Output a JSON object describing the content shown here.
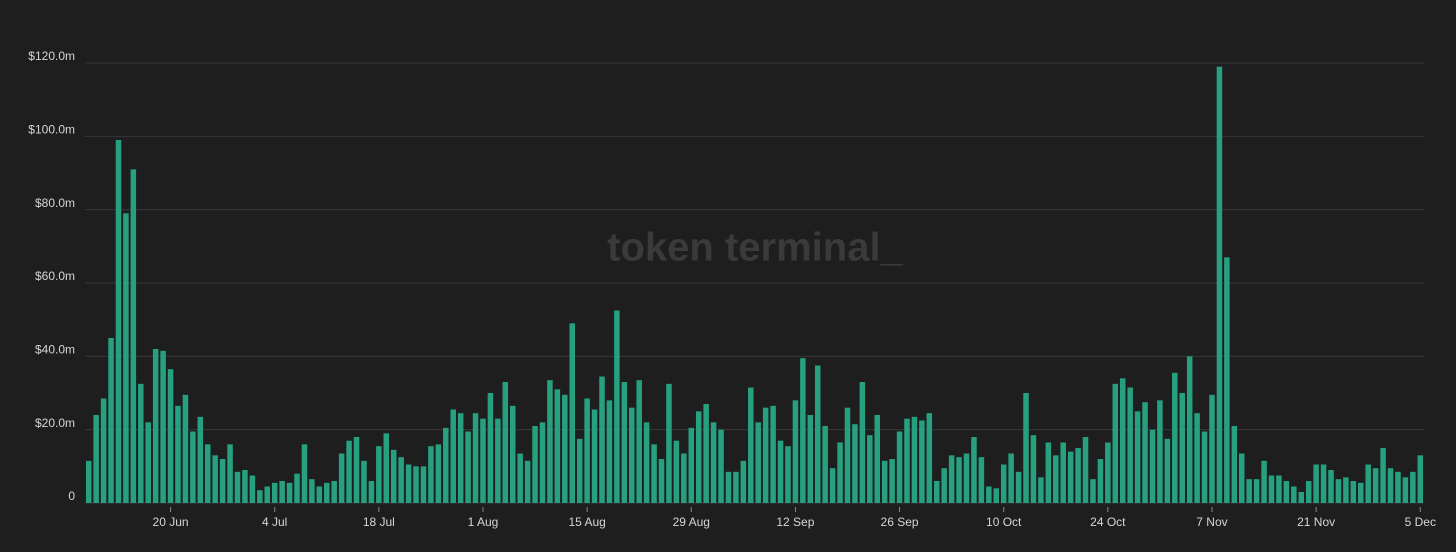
{
  "chart_data": {
    "type": "bar",
    "watermark": "token terminal_",
    "color": "#26a07e",
    "grid": true,
    "ylim": [
      0,
      120
    ],
    "yticks": [
      0,
      {
        "value": 20,
        "label": "$20.0m"
      },
      {
        "value": 40,
        "label": "$40.0m"
      },
      {
        "value": 60,
        "label": "$60.0m"
      },
      {
        "value": 80,
        "label": "$80.0m"
      },
      {
        "value": 100,
        "label": "$100.0m"
      },
      {
        "value": 120,
        "label": "$120.0m"
      }
    ],
    "categories": [
      null,
      null,
      null,
      null,
      null,
      null,
      null,
      null,
      null,
      null,
      null,
      "20 Jun",
      null,
      null,
      null,
      null,
      null,
      null,
      null,
      null,
      null,
      null,
      null,
      null,
      null,
      "4 Jul",
      null,
      null,
      null,
      null,
      null,
      null,
      null,
      null,
      null,
      null,
      null,
      null,
      null,
      "18 Jul",
      null,
      null,
      null,
      null,
      null,
      null,
      null,
      null,
      null,
      null,
      null,
      null,
      null,
      "1 Aug",
      null,
      null,
      null,
      null,
      null,
      null,
      null,
      null,
      null,
      null,
      null,
      null,
      null,
      "15 Aug",
      null,
      null,
      null,
      null,
      null,
      null,
      null,
      null,
      null,
      null,
      null,
      null,
      null,
      "29 Aug",
      null,
      null,
      null,
      null,
      null,
      null,
      null,
      null,
      null,
      null,
      null,
      null,
      null,
      "12 Sep",
      null,
      null,
      null,
      null,
      null,
      null,
      null,
      null,
      null,
      null,
      null,
      null,
      null,
      "26 Sep",
      null,
      null,
      null,
      null,
      null,
      null,
      null,
      null,
      null,
      null,
      null,
      null,
      null,
      "10 Oct",
      null,
      null,
      null,
      null,
      null,
      null,
      null,
      null,
      null,
      null,
      null,
      null,
      null,
      "24 Oct",
      null,
      null,
      null,
      null,
      null,
      null,
      null,
      null,
      null,
      null,
      null,
      null,
      null,
      "7 Nov",
      null,
      null,
      null,
      null,
      null,
      null,
      null,
      null,
      null,
      null,
      null,
      null,
      null,
      "21 Nov",
      null,
      null,
      null,
      null,
      null,
      null,
      null,
      null,
      null,
      null,
      null,
      null,
      null,
      "5 Dec"
    ],
    "values": [
      11.5,
      24,
      28.5,
      45,
      99,
      79,
      91,
      32.5,
      22,
      42,
      41.5,
      36.5,
      26.5,
      29.5,
      19.5,
      23.5,
      16,
      13,
      12,
      16,
      8.5,
      9,
      7.5,
      3.5,
      4.5,
      5.5,
      6,
      5.5,
      8,
      16,
      6.5,
      4.5,
      5.5,
      6,
      13.5,
      17,
      18,
      11.5,
      6,
      15.5,
      19,
      14.5,
      12.5,
      10.5,
      10,
      10,
      15.5,
      16,
      20.5,
      25.5,
      24.5,
      19.5,
      24.5,
      23,
      30,
      23,
      33,
      26.5,
      13.5,
      11.5,
      21,
      22,
      33.5,
      31,
      29.5,
      49,
      17.5,
      28.5,
      25.5,
      34.5,
      28,
      52.5,
      33,
      26,
      33.5,
      22,
      16,
      12,
      32.5,
      17,
      13.5,
      20.5,
      25,
      27,
      22,
      20,
      8.5,
      8.5,
      11.5,
      31.5,
      22,
      26,
      26.5,
      17,
      15.5,
      28,
      39.5,
      24,
      37.5,
      21,
      9.5,
      16.5,
      26,
      21.5,
      33,
      18.5,
      24,
      11.5,
      12,
      19.5,
      23,
      23.5,
      22.5,
      24.5,
      6,
      9.5,
      13,
      12.5,
      13.5,
      18,
      12.5,
      4.5,
      4,
      10.5,
      13.5,
      8.5,
      30,
      18.5,
      7,
      16.5,
      13,
      16.5,
      14,
      15,
      18,
      6.5,
      12,
      16.5,
      32.5,
      34,
      31.5,
      25,
      27.5,
      20,
      28,
      17.5,
      35.5,
      30,
      40,
      24.5,
      19.5,
      29.5,
      119,
      67,
      21,
      13.5,
      6.5,
      6.5,
      11.5,
      7.5,
      7.5,
      6,
      4.5,
      3,
      6,
      10.5,
      10.5,
      9,
      6.5,
      7,
      6,
      5.5,
      10.5,
      9.5,
      15,
      9.5,
      8.5,
      7,
      8.5,
      13
    ]
  }
}
